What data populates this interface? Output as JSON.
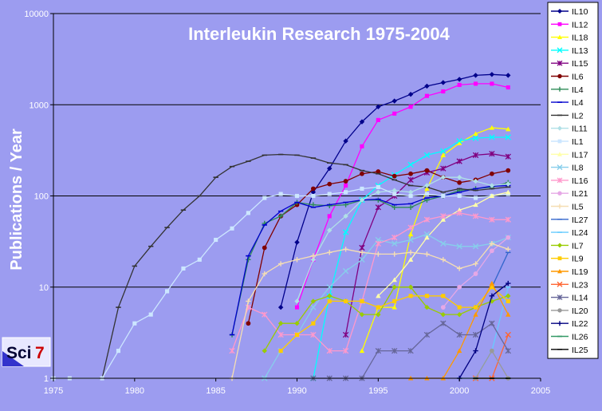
{
  "chart_data": {
    "type": "line",
    "title": "Interleukin Research 1975-2004",
    "xlabel": "",
    "ylabel": "Publications / Year",
    "y_scale": "log",
    "xlim": [
      1975,
      2005
    ],
    "ylim": [
      1,
      10000
    ],
    "x_ticks": [
      "1975",
      "1980",
      "1985",
      "1990",
      "1995",
      "2000",
      "2005"
    ],
    "y_ticks": [
      "1",
      "10",
      "100",
      "1000",
      "10000"
    ],
    "grid": "horizontal major gridlines",
    "legend_position": "right",
    "series": [
      {
        "name": "IL10",
        "color": "#00008b",
        "marker": "diamond",
        "x": [
          1989,
          1990,
          1991,
          1992,
          1993,
          1994,
          1995,
          1996,
          1997,
          1998,
          1999,
          2000,
          2001,
          2002,
          2003
        ],
        "y": [
          6,
          31,
          110,
          200,
          400,
          650,
          950,
          1100,
          1300,
          1600,
          1750,
          1900,
          2100,
          2150,
          2100
        ]
      },
      {
        "name": "IL12",
        "color": "#ff00ff",
        "marker": "square",
        "x": [
          1990,
          1991,
          1992,
          1993,
          1994,
          1995,
          1996,
          1997,
          1998,
          1999,
          2000,
          2001,
          2002,
          2003
        ],
        "y": [
          6,
          20,
          60,
          130,
          350,
          680,
          800,
          950,
          1250,
          1400,
          1650,
          1700,
          1700,
          1550
        ]
      },
      {
        "name": "IL18",
        "color": "#ffff00",
        "marker": "triangle",
        "x": [
          1994,
          1995,
          1996,
          1997,
          1998,
          1999,
          2000,
          2001,
          2002,
          2003
        ],
        "y": [
          2,
          6,
          6,
          38,
          120,
          280,
          380,
          480,
          560,
          540
        ]
      },
      {
        "name": "IL13",
        "color": "#00ffff",
        "marker": "x",
        "x": [
          1991,
          1992,
          1993,
          1994,
          1995,
          1996,
          1997,
          1998,
          1999,
          2000,
          2001,
          2002,
          2003
        ],
        "y": [
          1,
          8,
          40,
          90,
          130,
          170,
          220,
          280,
          310,
          400,
          430,
          440,
          440
        ]
      },
      {
        "name": "IL15",
        "color": "#800080",
        "marker": "star",
        "x": [
          1993,
          1994,
          1995,
          1996,
          1997,
          1998,
          1999,
          2000,
          2001,
          2002,
          2003
        ],
        "y": [
          3,
          27,
          75,
          100,
          150,
          180,
          200,
          240,
          280,
          290,
          270
        ]
      },
      {
        "name": "IL6",
        "color": "#800000",
        "marker": "circle",
        "x": [
          1987,
          1988,
          1989,
          1990,
          1991,
          1992,
          1993,
          1994,
          1995,
          1996,
          1997,
          1998,
          1999,
          2000,
          2001,
          2002,
          2003
        ],
        "y": [
          4,
          27,
          60,
          80,
          120,
          135,
          145,
          175,
          185,
          165,
          175,
          190,
          160,
          140,
          150,
          175,
          190
        ]
      },
      {
        "name": "IL4",
        "color": "#2e8b57",
        "marker": "plus",
        "x": [
          1986,
          1987,
          1988,
          1989,
          1990,
          1991,
          1992,
          1993,
          1994,
          1995,
          1996,
          1997,
          1998,
          1999,
          2000,
          2001,
          2002,
          2003
        ],
        "y": [
          3,
          20,
          50,
          60,
          85,
          80,
          78,
          80,
          90,
          90,
          75,
          75,
          90,
          100,
          115,
          120,
          125,
          140
        ]
      },
      {
        "name": "IL4",
        "color": "#0000cd",
        "marker": "dash",
        "x": [
          1986,
          1987,
          1988,
          1989,
          1990,
          1991,
          1992,
          1993,
          1994,
          1995,
          1996,
          1997,
          1998,
          1999,
          2000,
          2001,
          2002,
          2003
        ],
        "y": [
          3,
          22,
          48,
          68,
          85,
          75,
          80,
          85,
          90,
          92,
          80,
          82,
          95,
          100,
          110,
          120,
          128,
          130
        ]
      },
      {
        "name": "IL2",
        "color": "#333333",
        "marker": "dash",
        "x": [
          1978,
          1979,
          1980,
          1981,
          1982,
          1983,
          1984,
          1985,
          1986,
          1987,
          1988,
          1989,
          1990,
          1991,
          1992,
          1993,
          1994,
          1995,
          1996,
          1997,
          1998,
          1999,
          2000,
          2001,
          2002,
          2003
        ],
        "y": [
          1,
          6,
          17,
          28,
          45,
          70,
          100,
          160,
          210,
          240,
          280,
          285,
          280,
          260,
          230,
          220,
          190,
          175,
          150,
          130,
          125,
          110,
          120,
          115,
          120,
          125
        ]
      },
      {
        "name": "IL11",
        "color": "#b0e0e6",
        "marker": "diamond",
        "x": [
          1990,
          1991,
          1992,
          1993,
          1994,
          1995,
          1996,
          1997,
          1998,
          1999,
          2000,
          2001,
          2002,
          2003
        ],
        "y": [
          7,
          20,
          42,
          60,
          90,
          110,
          115,
          110,
          130,
          160,
          160,
          145,
          130,
          135
        ]
      },
      {
        "name": "IL1",
        "color": "#cce6ff",
        "marker": "square",
        "x": [
          1975,
          1976,
          1978,
          1979,
          1980,
          1981,
          1982,
          1983,
          1984,
          1985,
          1986,
          1987,
          1988,
          1989,
          1990,
          1991,
          1992,
          1993,
          1994,
          1995,
          1996,
          1997,
          1998,
          1999,
          2000,
          2001,
          2002,
          2003
        ],
        "y": [
          1,
          1,
          1,
          2,
          4,
          5,
          9,
          16,
          20,
          33,
          44,
          65,
          95,
          105,
          100,
          100,
          105,
          110,
          120,
          125,
          105,
          100,
          105,
          100,
          100,
          95,
          100,
          105
        ]
      },
      {
        "name": "IL17",
        "color": "#ffffaa",
        "marker": "triangle",
        "x": [
          1995,
          1996,
          1997,
          1998,
          1999,
          2000,
          2001,
          2002,
          2003
        ],
        "y": [
          8,
          12,
          20,
          35,
          55,
          70,
          80,
          100,
          110
        ]
      },
      {
        "name": "IL8",
        "color": "#87ceeb",
        "marker": "x",
        "x": [
          1988,
          1989,
          1990,
          1991,
          1992,
          1993,
          1994,
          1995,
          1996,
          1997,
          1998,
          1999,
          2000,
          2001,
          2002,
          2003
        ],
        "y": [
          1,
          2,
          3,
          6,
          10,
          15,
          20,
          33,
          30,
          33,
          38,
          30,
          28,
          28,
          30,
          35
        ]
      },
      {
        "name": "IL16",
        "color": "#ff99cc",
        "marker": "star",
        "x": [
          1986,
          1987,
          1988,
          1989,
          1990,
          1991,
          1992,
          1993,
          1994,
          1995,
          1996,
          1997,
          1998,
          1999,
          2000,
          2001,
          2002,
          2003
        ],
        "y": [
          2,
          6,
          5,
          3,
          3,
          3,
          2,
          2,
          7,
          30,
          35,
          45,
          55,
          60,
          65,
          60,
          55,
          55
        ]
      },
      {
        "name": "IL21",
        "color": "#e6a8e6",
        "marker": "circle",
        "x": [
          1999,
          2000,
          2001,
          2002,
          2003
        ],
        "y": [
          6,
          10,
          14,
          25,
          35
        ]
      },
      {
        "name": "IL5",
        "color": "#f5deb3",
        "marker": "plus",
        "x": [
          1986,
          1987,
          1988,
          1989,
          1990,
          1991,
          1992,
          1993,
          1994,
          1995,
          1996,
          1997,
          1998,
          1999,
          2000,
          2001,
          2002,
          2003
        ],
        "y": [
          1,
          7,
          14,
          18,
          20,
          22,
          24,
          26,
          24,
          23,
          23,
          24,
          23,
          20,
          16,
          18,
          30,
          26
        ]
      },
      {
        "name": "IL27",
        "color": "#3366cc",
        "marker": "dash",
        "x": [
          2002,
          2003
        ],
        "y": [
          10,
          24
        ]
      },
      {
        "name": "IL24",
        "color": "#66ccff",
        "marker": "dash",
        "x": [
          2000,
          2001,
          2002,
          2003
        ],
        "y": [
          1,
          1,
          2,
          10
        ]
      },
      {
        "name": "IL7",
        "color": "#99cc00",
        "marker": "diamond",
        "x": [
          1988,
          1989,
          1990,
          1991,
          1992,
          1993,
          1994,
          1995,
          1996,
          1997,
          1998,
          1999,
          2000,
          2001,
          2002,
          2003
        ],
        "y": [
          2,
          4,
          4,
          7,
          8,
          7,
          5,
          5,
          10,
          10,
          6,
          5,
          5,
          6,
          7,
          8
        ]
      },
      {
        "name": "IL9",
        "color": "#ffcc00",
        "marker": "square",
        "x": [
          1989,
          1990,
          1991,
          1992,
          1993,
          1994,
          1995,
          1996,
          1997,
          1998,
          1999,
          2000,
          2001,
          2002,
          2003
        ],
        "y": [
          2,
          3,
          4,
          7,
          7,
          7,
          6,
          7,
          8,
          8,
          8,
          6,
          6,
          10,
          7
        ]
      },
      {
        "name": "IL19",
        "color": "#ff9900",
        "marker": "triangle",
        "x": [
          1997,
          1998,
          1999,
          2000,
          2001,
          2002,
          2003
        ],
        "y": [
          1,
          1,
          1,
          2,
          5,
          11,
          5
        ]
      },
      {
        "name": "IL23",
        "color": "#ff6633",
        "marker": "x",
        "x": [
          2001,
          2002,
          2003
        ],
        "y": [
          1,
          1,
          3
        ]
      },
      {
        "name": "IL14",
        "color": "#666699",
        "marker": "star",
        "x": [
          1991,
          1992,
          1993,
          1994,
          1995,
          1996,
          1997,
          1998,
          1999,
          2000,
          2001,
          2002,
          2003
        ],
        "y": [
          1,
          1,
          1,
          1,
          2,
          2,
          2,
          3,
          4,
          3,
          3,
          4,
          2
        ]
      },
      {
        "name": "IL20",
        "color": "#999999",
        "marker": "circle",
        "x": [
          2001,
          2002,
          2003
        ],
        "y": [
          1,
          2,
          1
        ]
      },
      {
        "name": "IL22",
        "color": "#000080",
        "marker": "plus",
        "x": [
          2000,
          2001,
          2002,
          2003
        ],
        "y": [
          1,
          2,
          8,
          11
        ]
      },
      {
        "name": "IL26",
        "color": "#339966",
        "marker": "dash",
        "x": [
          2001,
          2002,
          2003
        ],
        "y": [
          1,
          1,
          1
        ]
      },
      {
        "name": "IL25",
        "color": "#000000",
        "marker": "dash",
        "x": [
          2001,
          2002,
          2003
        ],
        "y": [
          1,
          1,
          1
        ]
      }
    ]
  },
  "logo": {
    "text_a": "Sci",
    "text_b": "7"
  }
}
